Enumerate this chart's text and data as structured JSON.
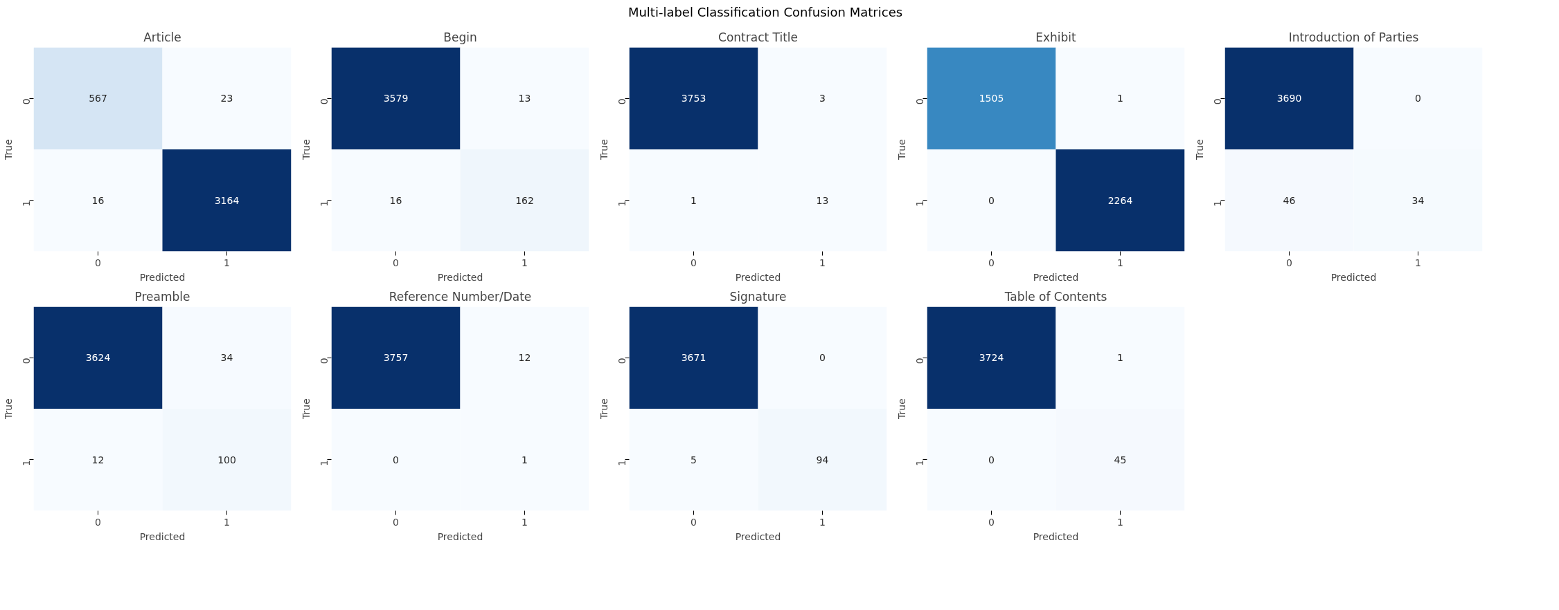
{
  "chart_data": [
    {
      "type": "heatmap",
      "title": "Article",
      "xlabel": "Predicted",
      "ylabel": "True",
      "categories": [
        "0",
        "1"
      ],
      "y_categories": [
        "0",
        "1"
      ],
      "cells": [
        [
          567,
          23
        ],
        [
          16,
          3164
        ]
      ],
      "data_labels": true,
      "grid": false,
      "annotations": [
        "Multi-label Classification Confusion Matrices"
      ]
    },
    {
      "type": "heatmap",
      "title": "Begin",
      "xlabel": "Predicted",
      "ylabel": "True",
      "categories": [
        "0",
        "1"
      ],
      "y_categories": [
        "0",
        "1"
      ],
      "cells": [
        [
          3579,
          13
        ],
        [
          16,
          162
        ]
      ],
      "data_labels": true,
      "grid": false
    },
    {
      "type": "heatmap",
      "title": "Contract Title",
      "xlabel": "Predicted",
      "ylabel": "True",
      "categories": [
        "0",
        "1"
      ],
      "y_categories": [
        "0",
        "1"
      ],
      "cells": [
        [
          3753,
          3
        ],
        [
          1,
          13
        ]
      ],
      "data_labels": true,
      "grid": false
    },
    {
      "type": "heatmap",
      "title": "Exhibit",
      "xlabel": "Predicted",
      "ylabel": "True",
      "categories": [
        "0",
        "1"
      ],
      "y_categories": [
        "0",
        "1"
      ],
      "cells": [
        [
          1505,
          1
        ],
        [
          0,
          2264
        ]
      ],
      "data_labels": true,
      "grid": false
    },
    {
      "type": "heatmap",
      "title": "Introduction of Parties",
      "xlabel": "Predicted",
      "ylabel": "True",
      "categories": [
        "0",
        "1"
      ],
      "y_categories": [
        "0",
        "1"
      ],
      "cells": [
        [
          3690,
          0
        ],
        [
          46,
          34
        ]
      ],
      "data_labels": true,
      "grid": false
    },
    {
      "type": "heatmap",
      "title": "Preamble",
      "xlabel": "Predicted",
      "ylabel": "True",
      "categories": [
        "0",
        "1"
      ],
      "y_categories": [
        "0",
        "1"
      ],
      "cells": [
        [
          3624,
          34
        ],
        [
          12,
          100
        ]
      ],
      "data_labels": true,
      "grid": false
    },
    {
      "type": "heatmap",
      "title": "Reference Number/Date",
      "xlabel": "Predicted",
      "ylabel": "True",
      "categories": [
        "0",
        "1"
      ],
      "y_categories": [
        "0",
        "1"
      ],
      "cells": [
        [
          3757,
          12
        ],
        [
          0,
          1
        ]
      ],
      "data_labels": true,
      "grid": false
    },
    {
      "type": "heatmap",
      "title": "Signature",
      "xlabel": "Predicted",
      "ylabel": "True",
      "categories": [
        "0",
        "1"
      ],
      "y_categories": [
        "0",
        "1"
      ],
      "cells": [
        [
          3671,
          0
        ],
        [
          5,
          94
        ]
      ],
      "data_labels": true,
      "grid": false
    },
    {
      "type": "heatmap",
      "title": "Table of Contents",
      "xlabel": "Predicted",
      "ylabel": "True",
      "categories": [
        "0",
        "1"
      ],
      "y_categories": [
        "0",
        "1"
      ],
      "cells": [
        [
          3724,
          1
        ],
        [
          0,
          45
        ]
      ],
      "data_labels": true,
      "grid": false
    }
  ]
}
